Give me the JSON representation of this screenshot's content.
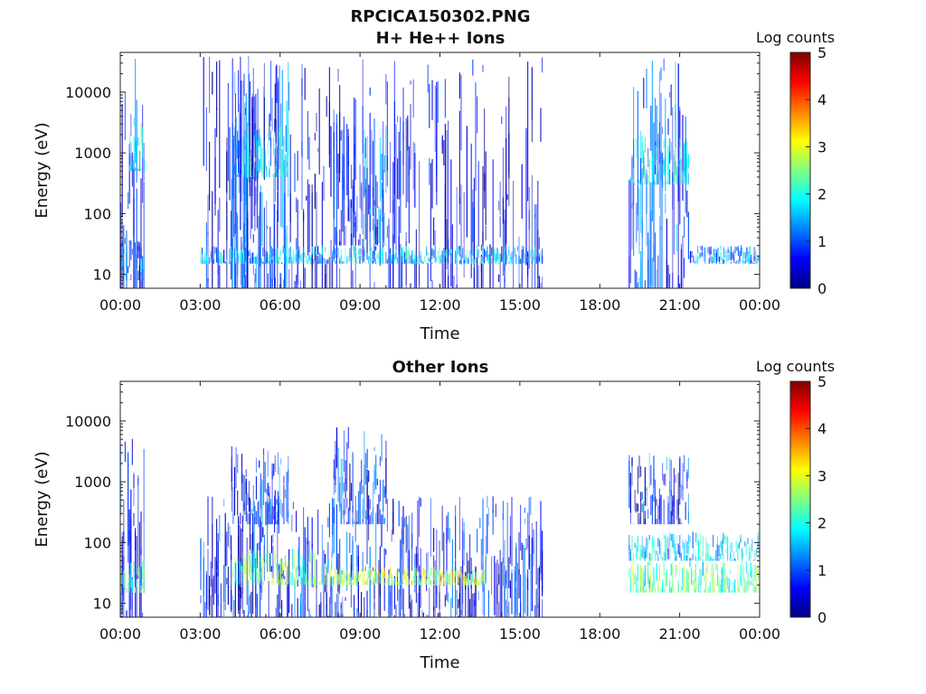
{
  "figure": {
    "title": "RPCICA150302.PNG",
    "colorbar_label": "Log counts",
    "colorbar_ticks": [
      "0",
      "1",
      "2",
      "3",
      "4",
      "5"
    ],
    "colormap": [
      "#00007f",
      "#0000ff",
      "#0080ff",
      "#00ffff",
      "#80ff80",
      "#ffff00",
      "#ff8000",
      "#ff0000",
      "#7f0000"
    ]
  },
  "chart_data": [
    {
      "type": "heatmap",
      "title": "H+ He++ Ions",
      "xlabel": "Time",
      "ylabel": "Energy (eV)",
      "x_ticks": [
        "00:00",
        "03:00",
        "06:00",
        "09:00",
        "12:00",
        "15:00",
        "18:00",
        "21:00",
        "00:00"
      ],
      "y_ticks": [
        "10",
        "100",
        "1000",
        "10000"
      ],
      "y_scale": "log",
      "color_range": [
        0,
        5
      ],
      "data_gaps": [
        [
          "00:55",
          "03:00"
        ],
        [
          "15:50",
          "19:05"
        ]
      ],
      "bands": [
        {
          "t0": "00:00",
          "t1": "00:55",
          "e0": 6,
          "e1": 40000,
          "level": 0.6
        },
        {
          "t0": "00:20",
          "t1": "00:55",
          "e0": 500,
          "e1": 4000,
          "level": 1.8
        },
        {
          "t0": "00:00",
          "t1": "00:55",
          "e0": 8,
          "e1": 40,
          "level": 1.2
        },
        {
          "t0": "03:00",
          "t1": "15:50",
          "e0": 6,
          "e1": 40000,
          "level": 0.3
        },
        {
          "t0": "03:00",
          "t1": "15:50",
          "e0": 15,
          "e1": 30,
          "level": 1.5
        },
        {
          "t0": "04:10",
          "t1": "06:20",
          "e0": 6,
          "e1": 40000,
          "level": 1.0
        },
        {
          "t0": "04:10",
          "t1": "06:20",
          "e0": 400,
          "e1": 3000,
          "level": 1.8
        },
        {
          "t0": "08:00",
          "t1": "10:00",
          "e0": 30,
          "e1": 3000,
          "level": 1.0
        },
        {
          "t0": "19:05",
          "t1": "21:20",
          "e0": 6,
          "e1": 40000,
          "level": 1.0
        },
        {
          "t0": "19:05",
          "t1": "21:20",
          "e0": 300,
          "e1": 2000,
          "level": 1.6
        },
        {
          "t0": "21:20",
          "t1": "24:00",
          "e0": 15,
          "e1": 30,
          "level": 1.3
        }
      ]
    },
    {
      "type": "heatmap",
      "title": "Other Ions",
      "xlabel": "Time",
      "ylabel": "Energy (eV)",
      "x_ticks": [
        "00:00",
        "03:00",
        "06:00",
        "09:00",
        "12:00",
        "15:00",
        "18:00",
        "21:00",
        "00:00"
      ],
      "y_ticks": [
        "10",
        "100",
        "1000",
        "10000"
      ],
      "y_scale": "log",
      "color_range": [
        0,
        5
      ],
      "data_gaps": [
        [
          "00:55",
          "03:00"
        ],
        [
          "15:50",
          "19:05"
        ]
      ],
      "bands": [
        {
          "t0": "00:00",
          "t1": "00:55",
          "e0": 6,
          "e1": 6000,
          "level": 0.8
        },
        {
          "t0": "00:00",
          "t1": "00:55",
          "e0": 15,
          "e1": 50,
          "level": 2.3
        },
        {
          "t0": "03:00",
          "t1": "15:50",
          "e0": 6,
          "e1": 600,
          "level": 0.6
        },
        {
          "t0": "04:10",
          "t1": "06:20",
          "e0": 200,
          "e1": 4000,
          "level": 0.8
        },
        {
          "t0": "04:10",
          "t1": "08:00",
          "e0": 20,
          "e1": 80,
          "level": 2.4
        },
        {
          "t0": "08:00",
          "t1": "10:00",
          "e0": 200,
          "e1": 8000,
          "level": 0.8
        },
        {
          "t0": "08:00",
          "t1": "13:40",
          "e0": 20,
          "e1": 40,
          "level": 2.8
        },
        {
          "t0": "19:05",
          "t1": "21:20",
          "e0": 200,
          "e1": 3000,
          "level": 0.8
        },
        {
          "t0": "19:05",
          "t1": "24:00",
          "e0": 15,
          "e1": 50,
          "level": 2.3
        },
        {
          "t0": "19:05",
          "t1": "24:00",
          "e0": 50,
          "e1": 150,
          "level": 1.6
        }
      ]
    }
  ]
}
